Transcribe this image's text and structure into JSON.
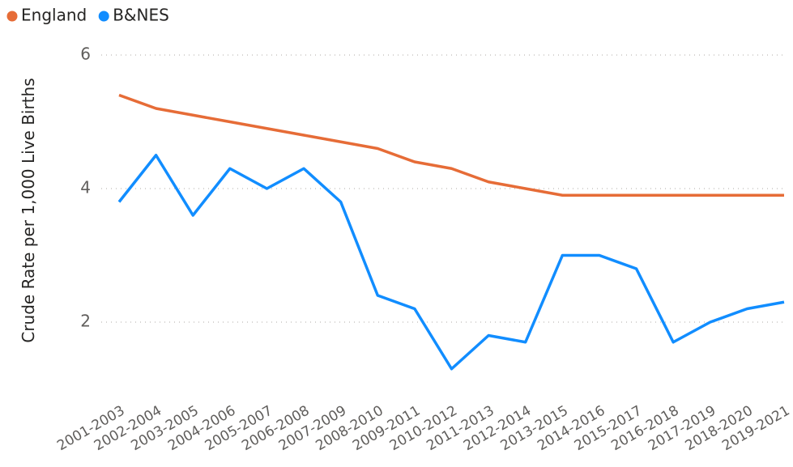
{
  "chart_data": {
    "type": "line",
    "y_label": "Crude Rate per 1,000 Live Births",
    "categories": [
      "2001-2003",
      "2002-2004",
      "2003-2005",
      "2004-2006",
      "2005-2007",
      "2006-2008",
      "2007-2009",
      "2008-2010",
      "2009-2011",
      "2010-2012",
      "2011-2013",
      "2012-2014",
      "2013-2015",
      "2014-2016",
      "2015-2017",
      "2016-2018",
      "2017-2019",
      "2018-2020",
      "2019-2021"
    ],
    "series": [
      {
        "name": "England",
        "color": "#e66c37",
        "values": [
          5.4,
          5.2,
          5.1,
          5.0,
          4.9,
          4.8,
          4.7,
          4.6,
          4.4,
          4.3,
          4.1,
          4.0,
          3.9,
          3.9,
          3.9,
          3.9,
          3.9,
          3.9,
          3.9
        ]
      },
      {
        "name": "B&NES",
        "color": "#118dff",
        "values": [
          3.8,
          4.5,
          3.6,
          4.3,
          4.0,
          4.3,
          3.8,
          2.4,
          2.2,
          1.3,
          1.8,
          1.7,
          3.0,
          3.0,
          2.8,
          1.7,
          2.0,
          2.2,
          2.3
        ]
      }
    ],
    "ylim": [
      1,
      6.2
    ],
    "yticks": [
      2,
      4,
      6
    ],
    "grid": true,
    "legend": "top-left"
  }
}
